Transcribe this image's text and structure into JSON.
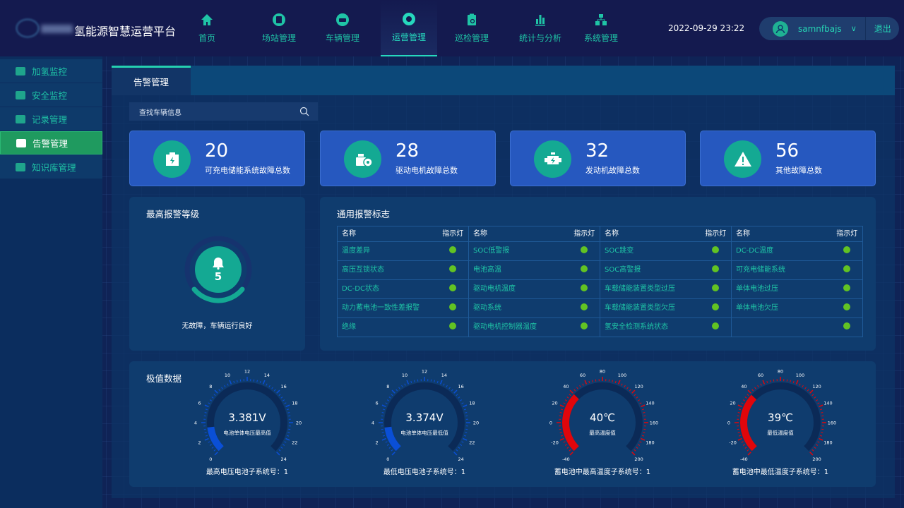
{
  "header": {
    "app_title": "氢能源智慧运营平台",
    "logo_text": "",
    "datetime": "2022-09-29  23:22",
    "username": "samnfbajs",
    "logout": "退出",
    "nav": [
      {
        "label": "首页",
        "icon": "home-icon"
      },
      {
        "label": "场站管理",
        "icon": "station-icon"
      },
      {
        "label": "车辆管理",
        "icon": "car-icon"
      },
      {
        "label": "运营管理",
        "icon": "operations-icon",
        "active": true
      },
      {
        "label": "巡检管理",
        "icon": "inspection-icon"
      },
      {
        "label": "统计与分析",
        "icon": "chart-icon"
      },
      {
        "label": "系统管理",
        "icon": "org-icon"
      }
    ]
  },
  "sidebar": {
    "items": [
      {
        "label": "加氢监控"
      },
      {
        "label": "安全监控"
      },
      {
        "label": "记录管理"
      },
      {
        "label": "告警管理",
        "active": true
      },
      {
        "label": "知识库管理"
      }
    ]
  },
  "tab": "告警管理",
  "search": {
    "placeholder": "查找车辆信息"
  },
  "cards": [
    {
      "value": "20",
      "label": "可充电储能系统故障总数",
      "icon": "battery-icon"
    },
    {
      "value": "28",
      "label": "驱动电机故障总数",
      "icon": "motor-icon"
    },
    {
      "value": "32",
      "label": "发动机故障总数",
      "icon": "engine-icon"
    },
    {
      "value": "56",
      "label": "其他故障总数",
      "icon": "warning-icon"
    }
  ],
  "alarm_level": {
    "title": "最高报警等级",
    "level": "5",
    "status": "无故障，车辆运行良好"
  },
  "flags": {
    "title": "通用报警标志",
    "col_name": "名称",
    "col_lamp": "指示灯",
    "columns": [
      [
        "温度差异",
        "高压互锁状态",
        "DC-DC状态",
        "动力蓄电池一致性差报警",
        "绝缘"
      ],
      [
        "SOC低警报",
        "电池高温",
        "驱动电机温度",
        "驱动系统",
        "驱动电机控制器温度"
      ],
      [
        "SOC跳变",
        "SOC高警报",
        "车载储能装置类型过压",
        "车载储能装置类型欠压",
        "氢安全检测系统状态"
      ],
      [
        "DC-DC温度",
        "可充电储能系统",
        "单体电池过压",
        "单体电池欠压",
        ""
      ]
    ],
    "lamp_color": "#62c323"
  },
  "extreme": {
    "title": "极值数据",
    "gauges": [
      {
        "value": 3.381,
        "display": "3.381V",
        "name": "电池单体电压最高值",
        "footer": "最高电压电池子系统号：1",
        "min": 0,
        "max": 24,
        "step": 2,
        "color": "#0a4fd6",
        "ticks": [
          "0",
          "2",
          "4",
          "6",
          "8",
          "10",
          "12",
          "14",
          "16",
          "18",
          "20",
          "22",
          "24"
        ]
      },
      {
        "value": 3.374,
        "display": "3.374V",
        "name": "电池单体电压最低值",
        "footer": "最低电压电池子系统号：1",
        "min": 0,
        "max": 24,
        "step": 2,
        "color": "#0a4fd6",
        "ticks": [
          "0",
          "2",
          "4",
          "6",
          "8",
          "10",
          "12",
          "14",
          "16",
          "18",
          "20",
          "22",
          "24"
        ]
      },
      {
        "value": 40,
        "display": "40℃",
        "name": "最高温度值",
        "footer": "蓄电池中最高温度子系统号：1",
        "min": -40,
        "max": 200,
        "step": 20,
        "color": "#e0060b",
        "ticks": [
          "-40",
          "-20",
          "0",
          "20",
          "40",
          "60",
          "80",
          "100",
          "120",
          "140",
          "160",
          "180",
          "200"
        ]
      },
      {
        "value": 39,
        "display": "39℃",
        "name": "最低温度值",
        "footer": "蓄电池中最低温度子系统号：1",
        "min": -40,
        "max": 200,
        "step": 20,
        "color": "#e0060b",
        "ticks": [
          "-40",
          "-20",
          "0",
          "20",
          "40",
          "60",
          "80",
          "100",
          "120",
          "140",
          "160",
          "180",
          "200"
        ]
      }
    ]
  }
}
